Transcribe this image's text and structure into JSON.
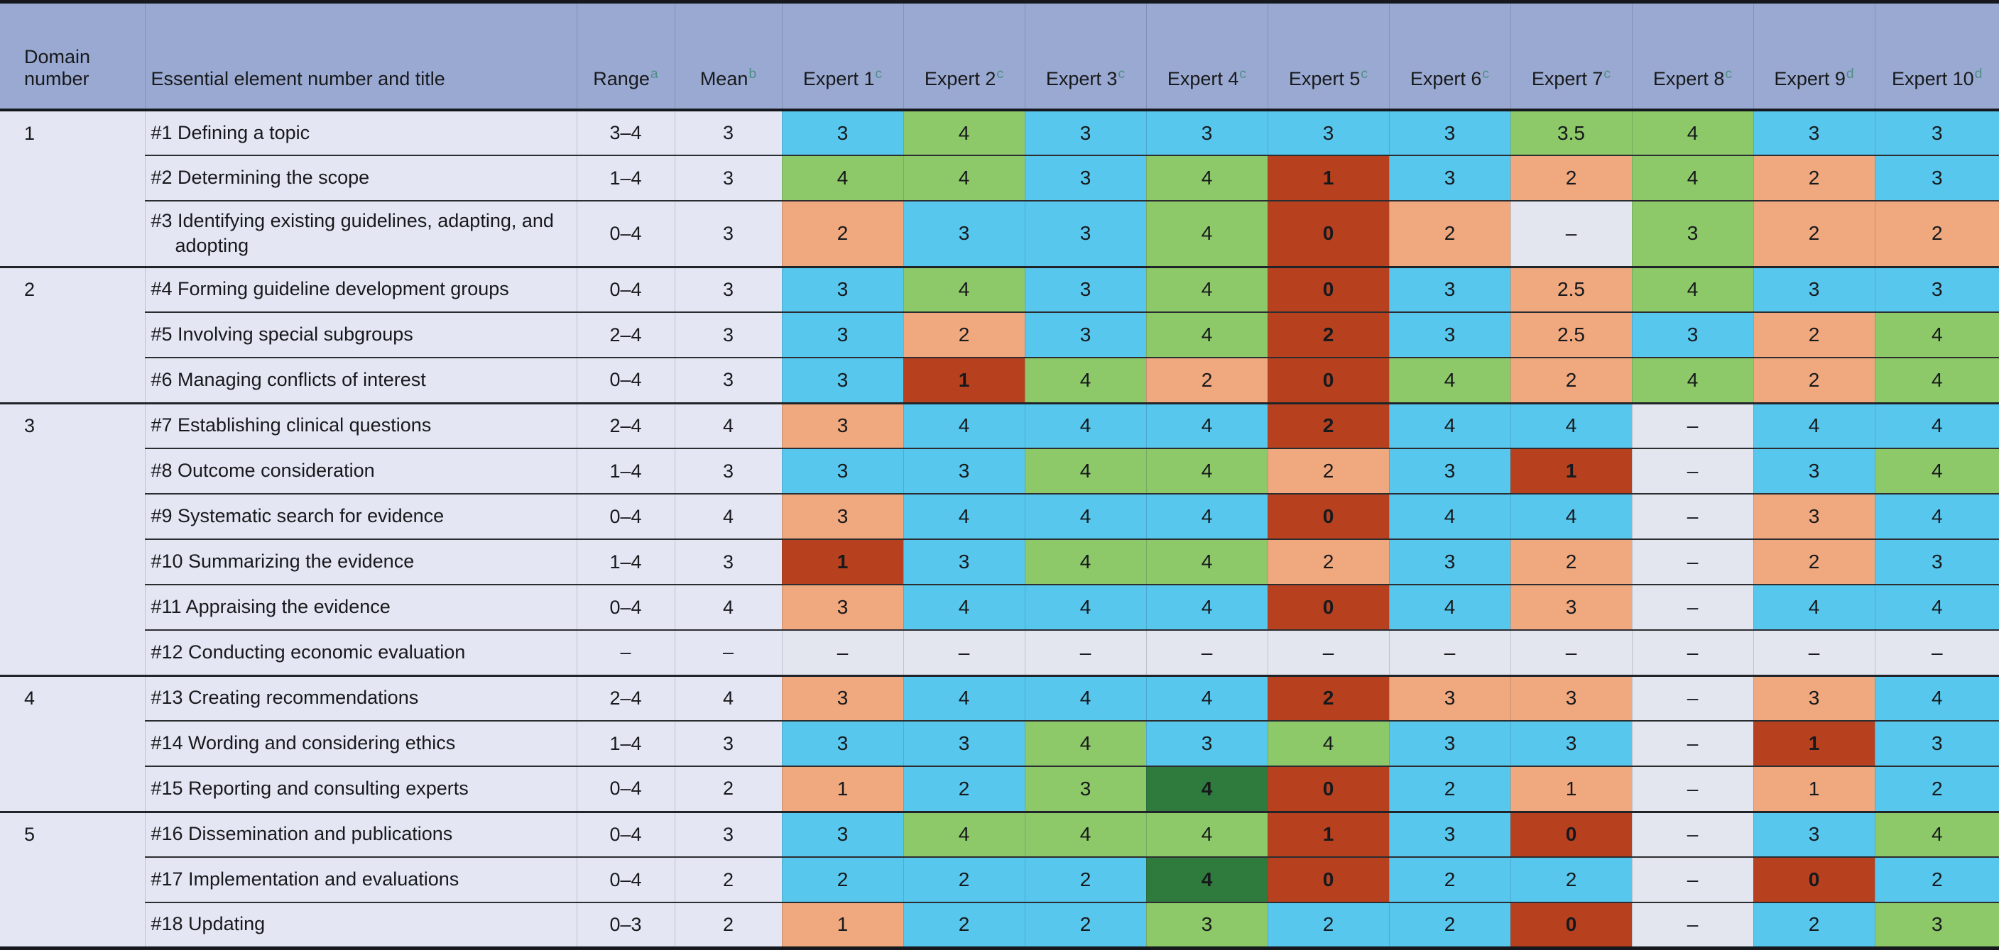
{
  "colors": {
    "blue": "#58c7ee",
    "green": "#8dc869",
    "orange": "#f0a87e",
    "dark_red": "#b7411f",
    "dark_green": "#2f7b3d",
    "none": "#e3e6ef",
    "header_bg": "#9aa9d1",
    "row_bg": "#e4e7f3",
    "footnote_marker": "#4f8f88"
  },
  "table": {
    "columns": {
      "domain": {
        "label": "Domain number"
      },
      "element": {
        "label": "Essential element number and title"
      },
      "range": {
        "label": "Range",
        "sup": "a"
      },
      "mean": {
        "label": "Mean",
        "sup": "b"
      },
      "experts": [
        {
          "label": "Expert 1",
          "sup": "c"
        },
        {
          "label": "Expert 2",
          "sup": "c"
        },
        {
          "label": "Expert 3",
          "sup": "c"
        },
        {
          "label": "Expert 4",
          "sup": "c"
        },
        {
          "label": "Expert 5",
          "sup": "c"
        },
        {
          "label": "Expert 6",
          "sup": "c"
        },
        {
          "label": "Expert 7",
          "sup": "c"
        },
        {
          "label": "Expert 8",
          "sup": "c"
        },
        {
          "label": "Expert 9",
          "sup": "d"
        },
        {
          "label": "Expert 10",
          "sup": "d"
        }
      ]
    },
    "rows": [
      {
        "domain": "1",
        "element": "#1 Defining a topic",
        "range": "3–4",
        "mean": "3",
        "group_start": true,
        "scores": [
          {
            "v": "3",
            "c": "blue"
          },
          {
            "v": "4",
            "c": "green"
          },
          {
            "v": "3",
            "c": "blue"
          },
          {
            "v": "3",
            "c": "blue"
          },
          {
            "v": "3",
            "c": "blue"
          },
          {
            "v": "3",
            "c": "blue"
          },
          {
            "v": "3.5",
            "c": "green"
          },
          {
            "v": "4",
            "c": "green"
          },
          {
            "v": "3",
            "c": "blue"
          },
          {
            "v": "3",
            "c": "blue"
          }
        ]
      },
      {
        "domain": "",
        "element": "#2 Determining the scope",
        "range": "1–4",
        "mean": "3",
        "group_start": false,
        "scores": [
          {
            "v": "4",
            "c": "green"
          },
          {
            "v": "4",
            "c": "green"
          },
          {
            "v": "3",
            "c": "blue"
          },
          {
            "v": "4",
            "c": "green"
          },
          {
            "v": "1",
            "c": "dark_red"
          },
          {
            "v": "3",
            "c": "blue"
          },
          {
            "v": "2",
            "c": "orange"
          },
          {
            "v": "4",
            "c": "green"
          },
          {
            "v": "2",
            "c": "orange"
          },
          {
            "v": "3",
            "c": "blue"
          }
        ]
      },
      {
        "domain": "",
        "element": "#3 Identifying existing guidelines, adapting, and adopting",
        "range": "0–4",
        "mean": "3",
        "group_start": false,
        "scores": [
          {
            "v": "2",
            "c": "orange"
          },
          {
            "v": "3",
            "c": "blue"
          },
          {
            "v": "3",
            "c": "blue"
          },
          {
            "v": "4",
            "c": "green"
          },
          {
            "v": "0",
            "c": "dark_red"
          },
          {
            "v": "2",
            "c": "orange"
          },
          {
            "v": "–",
            "c": "none"
          },
          {
            "v": "3",
            "c": "green"
          },
          {
            "v": "2",
            "c": "orange"
          },
          {
            "v": "2",
            "c": "orange"
          }
        ]
      },
      {
        "domain": "2",
        "element": "#4 Forming guideline development groups",
        "range": "0–4",
        "mean": "3",
        "group_start": true,
        "scores": [
          {
            "v": "3",
            "c": "blue"
          },
          {
            "v": "4",
            "c": "green"
          },
          {
            "v": "3",
            "c": "blue"
          },
          {
            "v": "4",
            "c": "green"
          },
          {
            "v": "0",
            "c": "dark_red"
          },
          {
            "v": "3",
            "c": "blue"
          },
          {
            "v": "2.5",
            "c": "orange"
          },
          {
            "v": "4",
            "c": "green"
          },
          {
            "v": "3",
            "c": "blue"
          },
          {
            "v": "3",
            "c": "blue"
          }
        ]
      },
      {
        "domain": "",
        "element": "#5 Involving special subgroups",
        "range": "2–4",
        "mean": "3",
        "group_start": false,
        "scores": [
          {
            "v": "3",
            "c": "blue"
          },
          {
            "v": "2",
            "c": "orange"
          },
          {
            "v": "3",
            "c": "blue"
          },
          {
            "v": "4",
            "c": "green"
          },
          {
            "v": "2",
            "c": "dark_red"
          },
          {
            "v": "3",
            "c": "blue"
          },
          {
            "v": "2.5",
            "c": "orange"
          },
          {
            "v": "3",
            "c": "blue"
          },
          {
            "v": "2",
            "c": "orange"
          },
          {
            "v": "4",
            "c": "green"
          }
        ]
      },
      {
        "domain": "",
        "element": "#6 Managing conflicts of interest",
        "range": "0–4",
        "mean": "3",
        "group_start": false,
        "scores": [
          {
            "v": "3",
            "c": "blue"
          },
          {
            "v": "1",
            "c": "dark_red"
          },
          {
            "v": "4",
            "c": "green"
          },
          {
            "v": "2",
            "c": "orange"
          },
          {
            "v": "0",
            "c": "dark_red"
          },
          {
            "v": "4",
            "c": "green"
          },
          {
            "v": "2",
            "c": "orange"
          },
          {
            "v": "4",
            "c": "green"
          },
          {
            "v": "2",
            "c": "orange"
          },
          {
            "v": "4",
            "c": "green"
          }
        ]
      },
      {
        "domain": "3",
        "element": "#7 Establishing clinical questions",
        "range": "2–4",
        "mean": "4",
        "group_start": true,
        "scores": [
          {
            "v": "3",
            "c": "orange"
          },
          {
            "v": "4",
            "c": "blue"
          },
          {
            "v": "4",
            "c": "blue"
          },
          {
            "v": "4",
            "c": "blue"
          },
          {
            "v": "2",
            "c": "dark_red"
          },
          {
            "v": "4",
            "c": "blue"
          },
          {
            "v": "4",
            "c": "blue"
          },
          {
            "v": "–",
            "c": "none"
          },
          {
            "v": "4",
            "c": "blue"
          },
          {
            "v": "4",
            "c": "blue"
          }
        ]
      },
      {
        "domain": "",
        "element": "#8 Outcome consideration",
        "range": "1–4",
        "mean": "3",
        "group_start": false,
        "scores": [
          {
            "v": "3",
            "c": "blue"
          },
          {
            "v": "3",
            "c": "blue"
          },
          {
            "v": "4",
            "c": "green"
          },
          {
            "v": "4",
            "c": "green"
          },
          {
            "v": "2",
            "c": "orange"
          },
          {
            "v": "3",
            "c": "blue"
          },
          {
            "v": "1",
            "c": "dark_red"
          },
          {
            "v": "–",
            "c": "none"
          },
          {
            "v": "3",
            "c": "blue"
          },
          {
            "v": "4",
            "c": "green"
          }
        ]
      },
      {
        "domain": "",
        "element": "#9 Systematic search for evidence",
        "range": "0–4",
        "mean": "4",
        "group_start": false,
        "scores": [
          {
            "v": "3",
            "c": "orange"
          },
          {
            "v": "4",
            "c": "blue"
          },
          {
            "v": "4",
            "c": "blue"
          },
          {
            "v": "4",
            "c": "blue"
          },
          {
            "v": "0",
            "c": "dark_red"
          },
          {
            "v": "4",
            "c": "blue"
          },
          {
            "v": "4",
            "c": "blue"
          },
          {
            "v": "–",
            "c": "none"
          },
          {
            "v": "3",
            "c": "orange"
          },
          {
            "v": "4",
            "c": "blue"
          }
        ]
      },
      {
        "domain": "",
        "element": "#10 Summarizing the evidence",
        "range": "1–4",
        "mean": "3",
        "group_start": false,
        "scores": [
          {
            "v": "1",
            "c": "dark_red"
          },
          {
            "v": "3",
            "c": "blue"
          },
          {
            "v": "4",
            "c": "green"
          },
          {
            "v": "4",
            "c": "green"
          },
          {
            "v": "2",
            "c": "orange"
          },
          {
            "v": "3",
            "c": "blue"
          },
          {
            "v": "2",
            "c": "orange"
          },
          {
            "v": "–",
            "c": "none"
          },
          {
            "v": "2",
            "c": "orange"
          },
          {
            "v": "3",
            "c": "blue"
          }
        ]
      },
      {
        "domain": "",
        "element": "#11 Appraising the evidence",
        "range": "0–4",
        "mean": "4",
        "group_start": false,
        "scores": [
          {
            "v": "3",
            "c": "orange"
          },
          {
            "v": "4",
            "c": "blue"
          },
          {
            "v": "4",
            "c": "blue"
          },
          {
            "v": "4",
            "c": "blue"
          },
          {
            "v": "0",
            "c": "dark_red"
          },
          {
            "v": "4",
            "c": "blue"
          },
          {
            "v": "3",
            "c": "orange"
          },
          {
            "v": "–",
            "c": "none"
          },
          {
            "v": "4",
            "c": "blue"
          },
          {
            "v": "4",
            "c": "blue"
          }
        ]
      },
      {
        "domain": "",
        "element": "#12 Conducting economic evaluation",
        "range": "–",
        "mean": "–",
        "group_start": false,
        "scores": [
          {
            "v": "–",
            "c": "none"
          },
          {
            "v": "–",
            "c": "none"
          },
          {
            "v": "–",
            "c": "none"
          },
          {
            "v": "–",
            "c": "none"
          },
          {
            "v": "–",
            "c": "none"
          },
          {
            "v": "–",
            "c": "none"
          },
          {
            "v": "–",
            "c": "none"
          },
          {
            "v": "–",
            "c": "none"
          },
          {
            "v": "–",
            "c": "none"
          },
          {
            "v": "–",
            "c": "none"
          }
        ]
      },
      {
        "domain": "4",
        "element": "#13 Creating recommendations",
        "range": "2–4",
        "mean": "4",
        "group_start": true,
        "scores": [
          {
            "v": "3",
            "c": "orange"
          },
          {
            "v": "4",
            "c": "blue"
          },
          {
            "v": "4",
            "c": "blue"
          },
          {
            "v": "4",
            "c": "blue"
          },
          {
            "v": "2",
            "c": "dark_red"
          },
          {
            "v": "3",
            "c": "orange"
          },
          {
            "v": "3",
            "c": "orange"
          },
          {
            "v": "–",
            "c": "none"
          },
          {
            "v": "3",
            "c": "orange"
          },
          {
            "v": "4",
            "c": "blue"
          }
        ]
      },
      {
        "domain": "",
        "element": "#14 Wording and considering ethics",
        "range": "1–4",
        "mean": "3",
        "group_start": false,
        "scores": [
          {
            "v": "3",
            "c": "blue"
          },
          {
            "v": "3",
            "c": "blue"
          },
          {
            "v": "4",
            "c": "green"
          },
          {
            "v": "3",
            "c": "blue"
          },
          {
            "v": "4",
            "c": "green"
          },
          {
            "v": "3",
            "c": "blue"
          },
          {
            "v": "3",
            "c": "blue"
          },
          {
            "v": "–",
            "c": "none"
          },
          {
            "v": "1",
            "c": "dark_red"
          },
          {
            "v": "3",
            "c": "blue"
          }
        ]
      },
      {
        "domain": "",
        "element": "#15 Reporting and consulting experts",
        "range": "0–4",
        "mean": "2",
        "group_start": false,
        "scores": [
          {
            "v": "1",
            "c": "orange"
          },
          {
            "v": "2",
            "c": "blue"
          },
          {
            "v": "3",
            "c": "green"
          },
          {
            "v": "4",
            "c": "dark_green"
          },
          {
            "v": "0",
            "c": "dark_red"
          },
          {
            "v": "2",
            "c": "blue"
          },
          {
            "v": "1",
            "c": "orange"
          },
          {
            "v": "–",
            "c": "none"
          },
          {
            "v": "1",
            "c": "orange"
          },
          {
            "v": "2",
            "c": "blue"
          }
        ]
      },
      {
        "domain": "5",
        "element": "#16 Dissemination and publications",
        "range": "0–4",
        "mean": "3",
        "group_start": true,
        "scores": [
          {
            "v": "3",
            "c": "blue"
          },
          {
            "v": "4",
            "c": "green"
          },
          {
            "v": "4",
            "c": "green"
          },
          {
            "v": "4",
            "c": "green"
          },
          {
            "v": "1",
            "c": "dark_red"
          },
          {
            "v": "3",
            "c": "blue"
          },
          {
            "v": "0",
            "c": "dark_red"
          },
          {
            "v": "–",
            "c": "none"
          },
          {
            "v": "3",
            "c": "blue"
          },
          {
            "v": "4",
            "c": "green"
          }
        ]
      },
      {
        "domain": "",
        "element": "#17 Implementation and evaluations",
        "range": "0–4",
        "mean": "2",
        "group_start": false,
        "scores": [
          {
            "v": "2",
            "c": "blue"
          },
          {
            "v": "2",
            "c": "blue"
          },
          {
            "v": "2",
            "c": "blue"
          },
          {
            "v": "4",
            "c": "dark_green"
          },
          {
            "v": "0",
            "c": "dark_red"
          },
          {
            "v": "2",
            "c": "blue"
          },
          {
            "v": "2",
            "c": "blue"
          },
          {
            "v": "–",
            "c": "none"
          },
          {
            "v": "0",
            "c": "dark_red"
          },
          {
            "v": "2",
            "c": "blue"
          }
        ]
      },
      {
        "domain": "",
        "element": "#18 Updating",
        "range": "0–3",
        "mean": "2",
        "group_start": false,
        "scores": [
          {
            "v": "1",
            "c": "orange"
          },
          {
            "v": "2",
            "c": "blue"
          },
          {
            "v": "2",
            "c": "blue"
          },
          {
            "v": "3",
            "c": "green"
          },
          {
            "v": "2",
            "c": "blue"
          },
          {
            "v": "2",
            "c": "blue"
          },
          {
            "v": "0",
            "c": "dark_red"
          },
          {
            "v": "–",
            "c": "none"
          },
          {
            "v": "2",
            "c": "blue"
          },
          {
            "v": "3",
            "c": "green"
          }
        ]
      }
    ]
  }
}
